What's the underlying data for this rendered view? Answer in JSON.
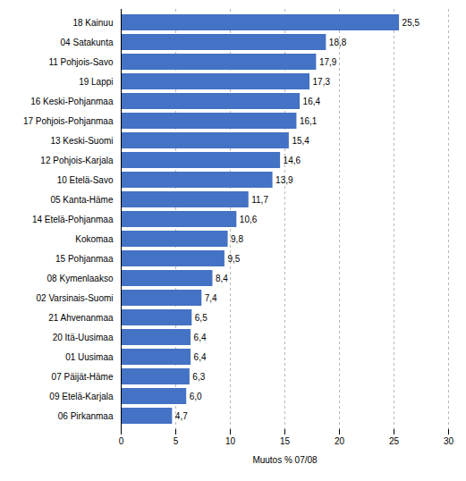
{
  "chart_data": {
    "type": "bar",
    "orientation": "horizontal",
    "categories": [
      "06 Pirkanmaa",
      "09 Etelä-Karjala",
      "07 Päijät-Häme",
      "01 Uusimaa",
      "20 Itä-Uusimaa",
      "21 Ahvenanmaa",
      "02 Varsinais-Suomi",
      "08 Kymenlaakso",
      "15 Pohjanmaa",
      "Kokomaa",
      "14 Etelä-Pohjanmaa",
      "05 Kanta-Häme",
      "10 Etelä-Savo",
      "12 Pohjois-Karjala",
      "13 Keski-Suomi",
      "17 Pohjois-Pohjanmaa",
      "16 Keski-Pohjanmaa",
      "19 Lappi",
      "11 Pohjois-Savo",
      "04 Satakunta",
      "18 Kainuu"
    ],
    "values": [
      4.7,
      6.0,
      6.3,
      6.4,
      6.4,
      6.5,
      7.4,
      8.4,
      9.5,
      9.8,
      10.6,
      11.7,
      13.9,
      14.6,
      15.4,
      16.1,
      16.4,
      17.3,
      17.9,
      18.8,
      25.5
    ],
    "value_labels": [
      "4,7",
      "6,0",
      "6,3",
      "6,4",
      "6,4",
      "6,5",
      "7,4",
      "8,4",
      "9,5",
      "9,8",
      "10,6",
      "11,7",
      "13,9",
      "14,6",
      "15,4",
      "16,1",
      "16,4",
      "17,3",
      "17,9",
      "18,8",
      "25,5"
    ],
    "data_labels": true,
    "color": "#4472c4",
    "xlabel": "Muutos % 07/08",
    "xlim": [
      0,
      30
    ],
    "xticks": [
      0,
      5,
      10,
      15,
      20,
      25,
      30
    ],
    "grid": true
  }
}
